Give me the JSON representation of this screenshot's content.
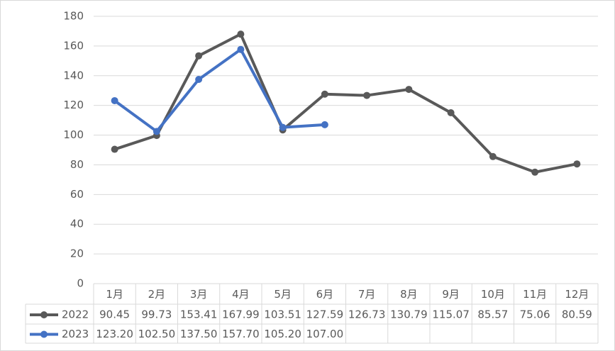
{
  "chart_data": {
    "type": "line",
    "categories": [
      "1月",
      "2月",
      "3月",
      "4月",
      "5月",
      "6月",
      "7月",
      "8月",
      "9月",
      "10月",
      "11月",
      "12月"
    ],
    "series": [
      {
        "name": "2022",
        "color": "#595959",
        "values": [
          90.45,
          99.73,
          153.41,
          167.99,
          103.51,
          127.59,
          126.73,
          130.79,
          115.07,
          85.57,
          75.06,
          80.59
        ]
      },
      {
        "name": "2023",
        "color": "#4472c4",
        "values": [
          123.2,
          102.5,
          137.5,
          157.7,
          105.2,
          107,
          null,
          null,
          null,
          null,
          null,
          null
        ],
        "value_labels": [
          "123.20",
          "102.50",
          "137.50",
          "157.70",
          "105.20",
          "107.00",
          null,
          null,
          null,
          null,
          null,
          null
        ]
      }
    ],
    "ylim": [
      0,
      180
    ],
    "yticks": [
      0,
      20,
      40,
      60,
      80,
      100,
      120,
      140,
      160,
      180
    ],
    "grid": true,
    "data_table": true
  }
}
